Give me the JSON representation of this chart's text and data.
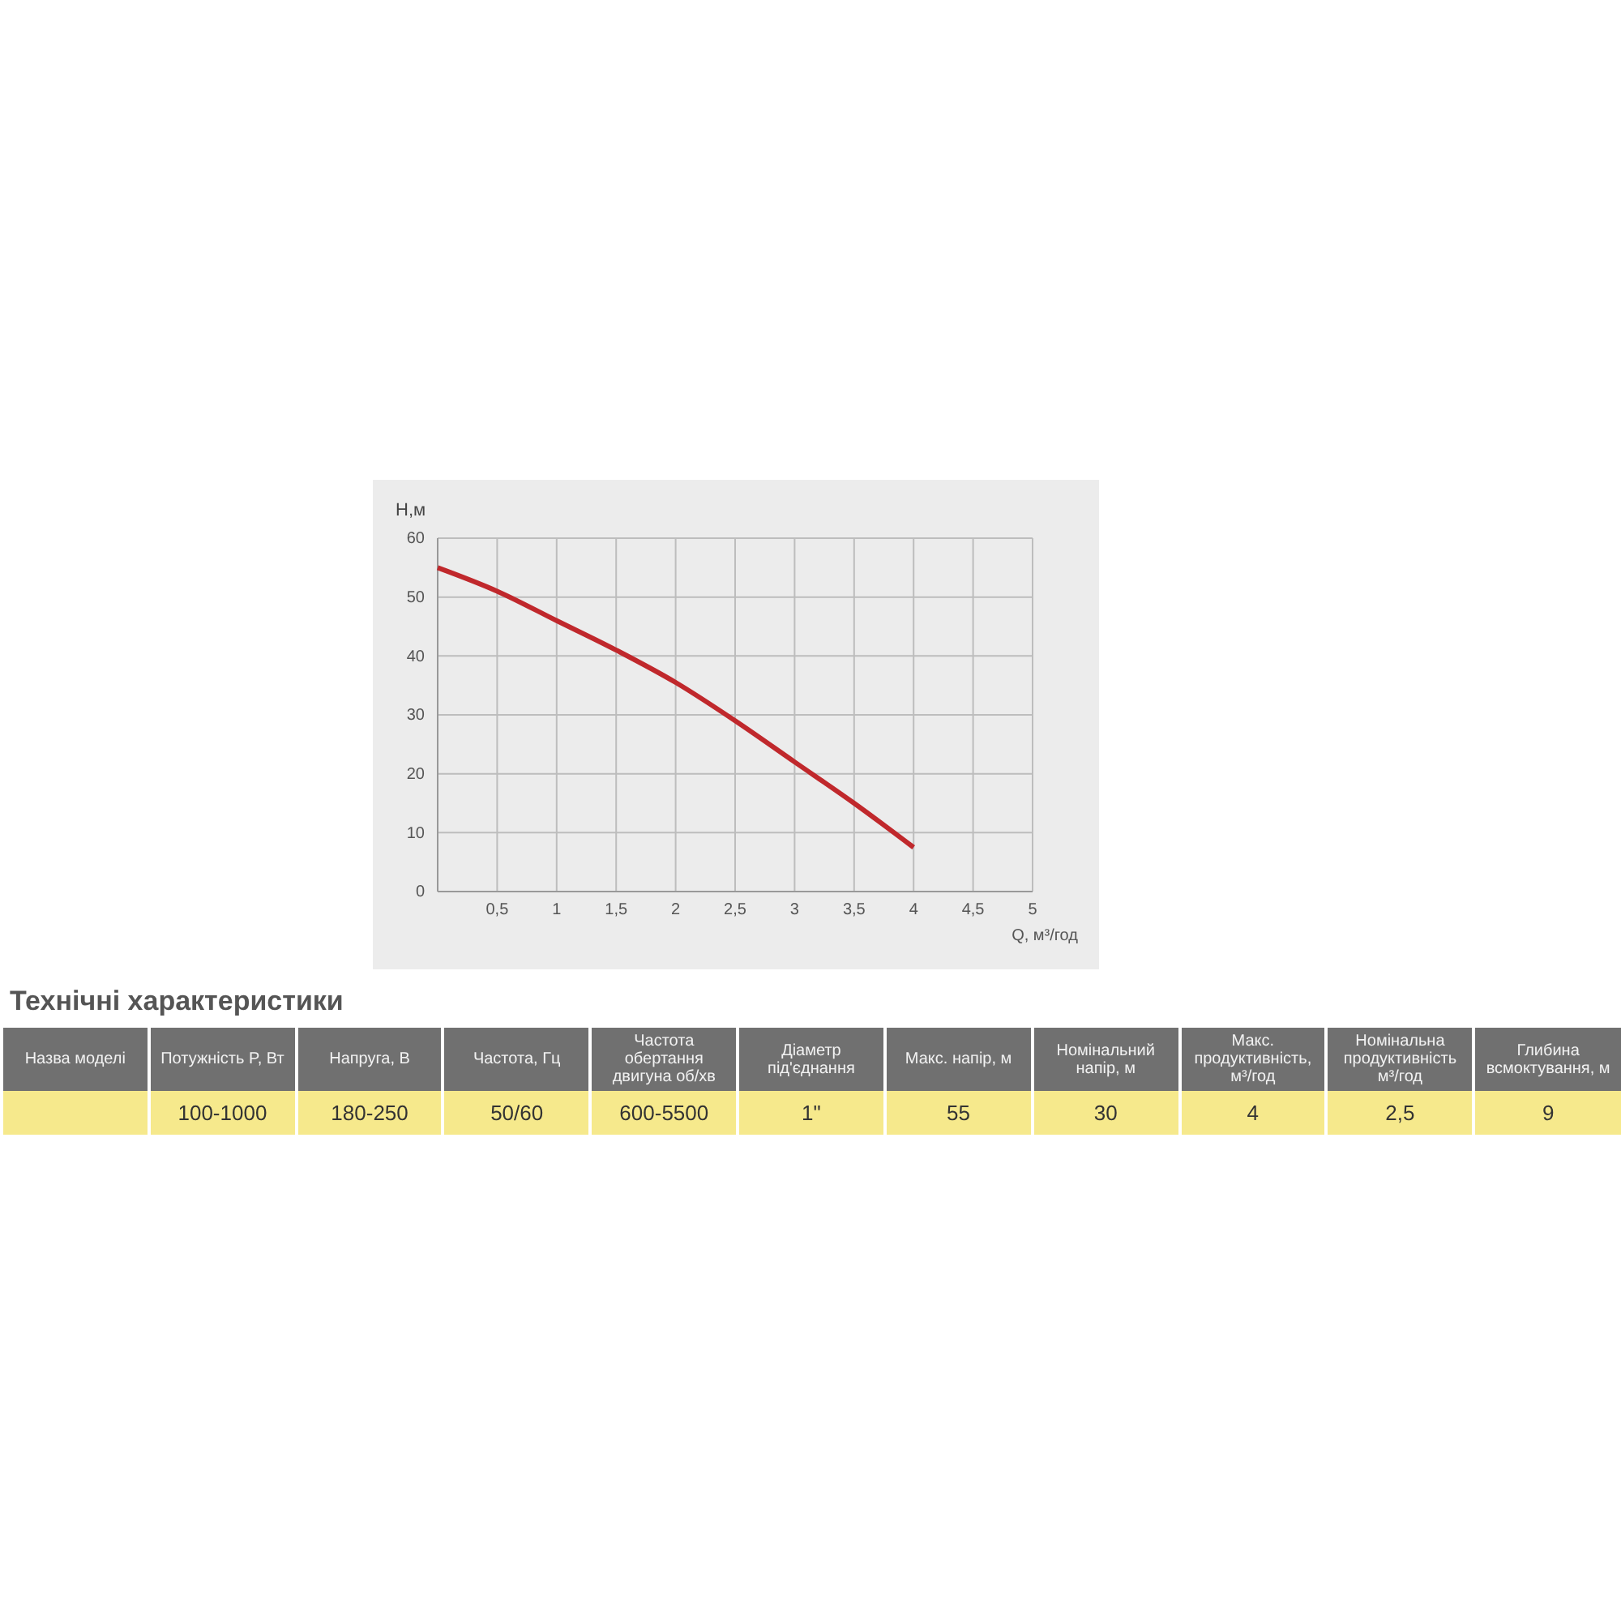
{
  "chart_data": [
    {
      "type": "line",
      "xlabel": "Q, м³/год",
      "ylabel": "H,м",
      "x": [
        0,
        0.5,
        1,
        1.5,
        2,
        2.5,
        3,
        3.5,
        4
      ],
      "series": [
        {
          "color": "#c0282c",
          "values": [
            55,
            51,
            46,
            41,
            35.5,
            29,
            22,
            15,
            7.5
          ]
        }
      ],
      "xlim": [
        0,
        5
      ],
      "ylim": [
        0,
        60
      ],
      "xticks": [
        {
          "value": 0.5,
          "label": "0,5"
        },
        1,
        {
          "value": 1.5,
          "label": "1,5"
        },
        2,
        {
          "value": 2.5,
          "label": "2,5"
        },
        3,
        {
          "value": 3.5,
          "label": "3,5"
        },
        4,
        {
          "value": 4.5,
          "label": "4,5"
        },
        5
      ],
      "yticks": [
        0,
        10,
        20,
        30,
        40,
        50,
        60
      ],
      "grid": true,
      "marker": "none",
      "line_style": "solid"
    },
    {
      "type": "other",
      "title": "Технічні характеристики",
      "annotations": [
        "Назва моделі",
        "Потужність P, Вт",
        "Напруга, В",
        "Частота, Гц",
        "Частота обертання двигуна об/хв",
        "Діаметр під'єднання",
        "Макс. напір, м",
        "Номінальний напір, м",
        "Макс. продуктивність, м³/год",
        "Номінальна продуктивність м³/год",
        "Глибина всмоктування, м",
        "100-1000",
        "180-250",
        "50/60",
        "600-5500",
        "1\"",
        "55",
        "30",
        "4",
        "2,5",
        "9"
      ]
    }
  ]
}
